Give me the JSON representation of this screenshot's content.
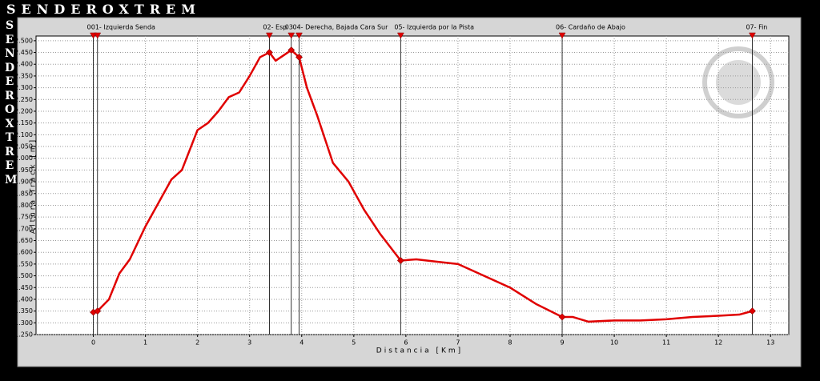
{
  "chart_data": {
    "type": "line",
    "brand": "SENDEROXTREM",
    "xlabel": "Distancia [Km]",
    "ylabel": "Altura Track [m]",
    "x": [
      0,
      0.08,
      0.3,
      0.5,
      0.7,
      1.0,
      1.3,
      1.5,
      1.7,
      2.0,
      2.2,
      2.4,
      2.6,
      2.8,
      3.0,
      3.2,
      3.38,
      3.5,
      3.7,
      3.8,
      3.95,
      4.1,
      4.3,
      4.6,
      4.9,
      5.2,
      5.5,
      5.9,
      6.2,
      6.6,
      7.0,
      7.4,
      8.0,
      8.5,
      9.0,
      9.2,
      9.5,
      10.0,
      10.5,
      11.0,
      11.5,
      12.0,
      12.4,
      12.65
    ],
    "series": [
      {
        "color": "#e00000",
        "values": [
          1345,
          1350,
          1400,
          1510,
          1570,
          1710,
          1830,
          1910,
          1950,
          2120,
          2150,
          2200,
          2260,
          2280,
          2350,
          2430,
          2450,
          2415,
          2445,
          2460,
          2430,
          2300,
          2180,
          1980,
          1900,
          1780,
          1680,
          1565,
          1570,
          1560,
          1550,
          1510,
          1450,
          1380,
          1325,
          1325,
          1305,
          1310,
          1310,
          1315,
          1325,
          1330,
          1335,
          1350
        ]
      }
    ],
    "waypoints": [
      {
        "label": "0",
        "x": 0,
        "y": 1345
      },
      {
        "label": "01- Izquierda Senda",
        "x": 0.08,
        "y": 1350
      },
      {
        "label": "02- Esp",
        "x": 3.38,
        "y": 2450
      },
      {
        "label": "03",
        "x": 3.8,
        "y": 2460
      },
      {
        "label": "04- Derecha, Bajada Cara Sur",
        "x": 3.95,
        "y": 2430
      },
      {
        "label": "05- Izquierda por la Pista",
        "x": 5.9,
        "y": 1565
      },
      {
        "label": "06- Cardaño de Abajo",
        "x": 9.0,
        "y": 1325
      },
      {
        "label": "07- Fin",
        "x": 12.65,
        "y": 1350
      }
    ],
    "xlim": [
      -1.1,
      13.35
    ],
    "ylim": [
      1250,
      2520
    ],
    "xticks": [
      0,
      1,
      2,
      3,
      4,
      5,
      6,
      7,
      8,
      9,
      10,
      11,
      12,
      13
    ],
    "yticks": [
      {
        "value": 1250,
        "label": "1.250"
      },
      {
        "value": 1300,
        "label": "1.300"
      },
      {
        "value": 1350,
        "label": "1.350"
      },
      {
        "value": 1400,
        "label": "1.400"
      },
      {
        "value": 1450,
        "label": "1.450"
      },
      {
        "value": 1500,
        "label": "1.500"
      },
      {
        "value": 1550,
        "label": "1.550"
      },
      {
        "value": 1600,
        "label": "1.600"
      },
      {
        "value": 1650,
        "label": "1.650"
      },
      {
        "value": 1700,
        "label": "1.700"
      },
      {
        "value": 1750,
        "label": "1.750"
      },
      {
        "value": 1800,
        "label": "1.800"
      },
      {
        "value": 1850,
        "label": "1.850"
      },
      {
        "value": 1900,
        "label": "1.900"
      },
      {
        "value": 1950,
        "label": "1.950"
      },
      {
        "value": 2000,
        "label": "2.000"
      },
      {
        "value": 2050,
        "label": "2.050"
      },
      {
        "value": 2100,
        "label": "2.100"
      },
      {
        "value": 2150,
        "label": "2.150"
      },
      {
        "value": 2200,
        "label": "2.200"
      },
      {
        "value": 2250,
        "label": "2.250"
      },
      {
        "value": 2300,
        "label": "2.300"
      },
      {
        "value": 2350,
        "label": "2.350"
      },
      {
        "value": 2400,
        "label": "2.400"
      },
      {
        "value": 2450,
        "label": "2.450"
      },
      {
        "value": 2500,
        "label": "2.500"
      }
    ],
    "grid": true
  }
}
